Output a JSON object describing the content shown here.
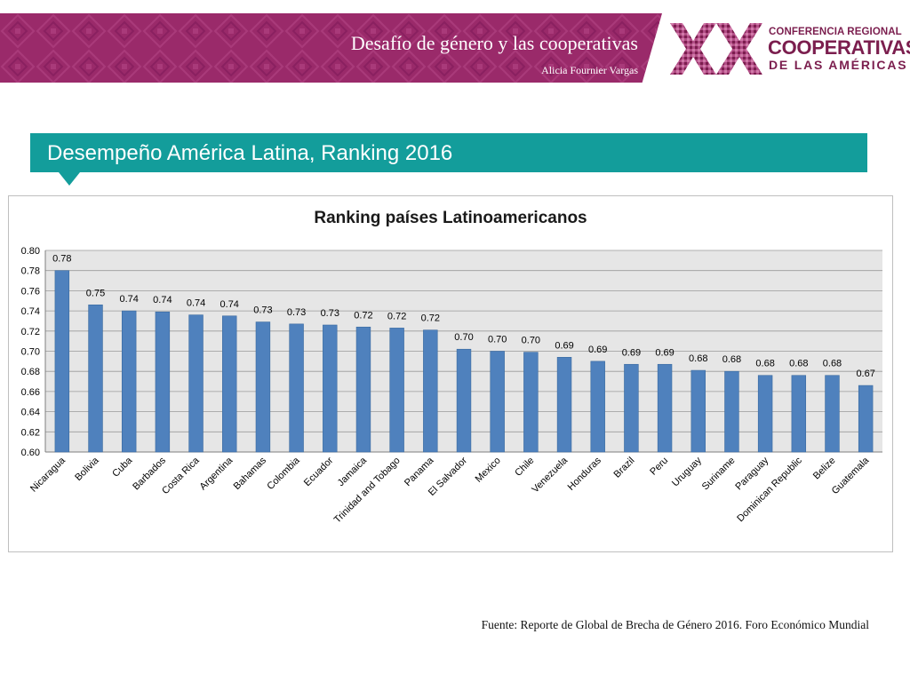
{
  "header": {
    "title": "Desafío de género y las cooperativas",
    "author": "Alicia Fournier Vargas",
    "banner_color": "#9a2a6a"
  },
  "logo": {
    "mark": "XX",
    "line1": "CONFERENCIA REGIONAL",
    "line2": "COOPERATIVAS",
    "line3": "DE LAS AMÉRICAS",
    "color": "#7b1e4e"
  },
  "section": {
    "title": "Desempeño América Latina, Ranking 2016",
    "color": "#139d9b"
  },
  "chart_data": {
    "type": "bar",
    "title": "Ranking países Latinoamericanos",
    "categories": [
      "Nicaragua",
      "Bolivia",
      "Cuba",
      "Barbados",
      "Costa Rica",
      "Argentina",
      "Bahamas",
      "Colombia",
      "Ecuador",
      "Jamaica",
      "Trinidad and Tobago",
      "Panama",
      "El Salvador",
      "Mexico",
      "Chile",
      "Venezuela",
      "Honduras",
      "Brazil",
      "Peru",
      "Uruguay",
      "Suriname",
      "Paraguay",
      "Dominican Republic",
      "Belize",
      "Guatemala"
    ],
    "values": [
      0.78,
      0.746,
      0.74,
      0.739,
      0.736,
      0.735,
      0.729,
      0.727,
      0.726,
      0.724,
      0.723,
      0.721,
      0.702,
      0.7,
      0.699,
      0.694,
      0.69,
      0.687,
      0.687,
      0.681,
      0.68,
      0.676,
      0.676,
      0.676,
      0.666
    ],
    "data_labels": [
      "0.78",
      "0.75",
      "0.74",
      "0.74",
      "0.74",
      "0.74",
      "0.73",
      "0.73",
      "0.73",
      "0.72",
      "0.72",
      "0.72",
      "0.70",
      "0.70",
      "0.70",
      "0.69",
      "0.69",
      "0.69",
      "0.69",
      "0.68",
      "0.68",
      "0.68",
      "0.68",
      "0.68",
      "0.67"
    ],
    "ylim": [
      0.6,
      0.8
    ],
    "yticks": [
      "0.60",
      "0.62",
      "0.64",
      "0.66",
      "0.68",
      "0.70",
      "0.72",
      "0.74",
      "0.76",
      "0.78",
      "0.80"
    ],
    "grid": true,
    "legend": "none",
    "bar_color": "#4f81bd",
    "plot_background": "#e6e6e6"
  },
  "footer": {
    "source": "Fuente: Reporte de Global de Brecha de Género 2016. Foro Económico Mundial"
  }
}
